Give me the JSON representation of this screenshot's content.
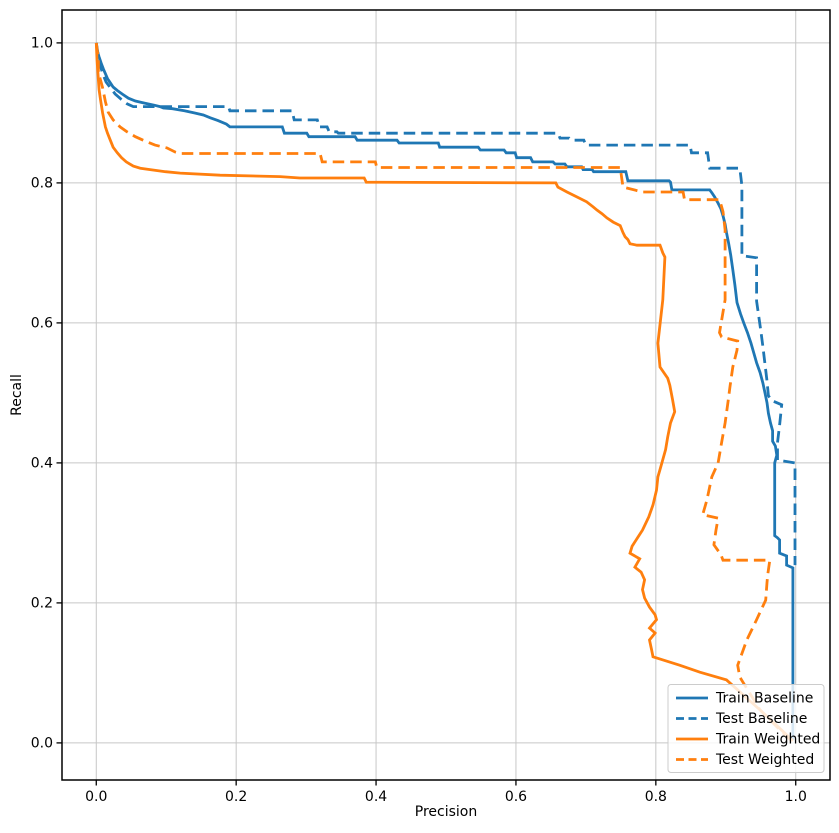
{
  "chart_data": {
    "type": "line",
    "title": "",
    "xlabel": "Precision",
    "ylabel": "Recall",
    "xlim": [
      -0.049,
      1.049
    ],
    "ylim": [
      -0.053,
      1.047
    ],
    "grid": true,
    "legend_position": "lower right",
    "x_ticks": [
      0.0,
      0.2,
      0.4,
      0.6,
      0.8,
      1.0
    ],
    "x_tick_labels": [
      "0.0",
      "0.2",
      "0.4",
      "0.6",
      "0.8",
      "1.0"
    ],
    "y_ticks": [
      0.0,
      0.2,
      0.4,
      0.6,
      0.8,
      1.0
    ],
    "y_tick_labels": [
      "0.0",
      "0.2",
      "0.4",
      "0.6",
      "0.8",
      "1.0"
    ],
    "series": [
      {
        "name": "Train Baseline",
        "color": "#1f77b4",
        "linestyle": "solid",
        "points": [
          [
            0.0,
            1.0
          ],
          [
            0.001,
            0.99
          ],
          [
            0.004,
            0.98
          ],
          [
            0.007,
            0.971
          ],
          [
            0.01,
            0.963
          ],
          [
            0.013,
            0.956
          ],
          [
            0.016,
            0.949
          ],
          [
            0.02,
            0.943
          ],
          [
            0.024,
            0.937
          ],
          [
            0.03,
            0.932
          ],
          [
            0.037,
            0.927
          ],
          [
            0.046,
            0.921
          ],
          [
            0.056,
            0.917
          ],
          [
            0.069,
            0.914
          ],
          [
            0.083,
            0.911
          ],
          [
            0.091,
            0.909
          ],
          [
            0.096,
            0.907
          ],
          [
            0.109,
            0.906
          ],
          [
            0.126,
            0.903
          ],
          [
            0.14,
            0.9
          ],
          [
            0.153,
            0.897
          ],
          [
            0.163,
            0.893
          ],
          [
            0.174,
            0.889
          ],
          [
            0.186,
            0.884
          ],
          [
            0.191,
            0.88
          ],
          [
            0.266,
            0.88
          ],
          [
            0.269,
            0.871
          ],
          [
            0.301,
            0.871
          ],
          [
            0.304,
            0.866
          ],
          [
            0.37,
            0.866
          ],
          [
            0.373,
            0.861
          ],
          [
            0.43,
            0.861
          ],
          [
            0.433,
            0.857
          ],
          [
            0.489,
            0.857
          ],
          [
            0.491,
            0.851
          ],
          [
            0.546,
            0.851
          ],
          [
            0.549,
            0.847
          ],
          [
            0.583,
            0.847
          ],
          [
            0.586,
            0.843
          ],
          [
            0.599,
            0.843
          ],
          [
            0.601,
            0.836
          ],
          [
            0.621,
            0.836
          ],
          [
            0.624,
            0.83
          ],
          [
            0.653,
            0.83
          ],
          [
            0.656,
            0.827
          ],
          [
            0.67,
            0.827
          ],
          [
            0.673,
            0.823
          ],
          [
            0.694,
            0.823
          ],
          [
            0.696,
            0.819
          ],
          [
            0.709,
            0.819
          ],
          [
            0.711,
            0.816
          ],
          [
            0.757,
            0.816
          ],
          [
            0.76,
            0.803
          ],
          [
            0.819,
            0.803
          ],
          [
            0.821,
            0.801
          ],
          [
            0.823,
            0.79
          ],
          [
            0.877,
            0.79
          ],
          [
            0.88,
            0.786
          ],
          [
            0.884,
            0.78
          ],
          [
            0.889,
            0.771
          ],
          [
            0.893,
            0.763
          ],
          [
            0.896,
            0.753
          ],
          [
            0.899,
            0.741
          ],
          [
            0.901,
            0.729
          ],
          [
            0.904,
            0.714
          ],
          [
            0.907,
            0.697
          ],
          [
            0.91,
            0.676
          ],
          [
            0.913,
            0.654
          ],
          [
            0.916,
            0.629
          ],
          [
            0.921,
            0.613
          ],
          [
            0.926,
            0.599
          ],
          [
            0.931,
            0.586
          ],
          [
            0.936,
            0.571
          ],
          [
            0.94,
            0.557
          ],
          [
            0.944,
            0.543
          ],
          [
            0.949,
            0.529
          ],
          [
            0.953,
            0.514
          ],
          [
            0.956,
            0.5
          ],
          [
            0.959,
            0.486
          ],
          [
            0.961,
            0.471
          ],
          [
            0.964,
            0.457
          ],
          [
            0.967,
            0.446
          ],
          [
            0.967,
            0.431
          ],
          [
            0.971,
            0.424
          ],
          [
            0.973,
            0.411
          ],
          [
            0.97,
            0.4
          ],
          [
            0.97,
            0.296
          ],
          [
            0.974,
            0.293
          ],
          [
            0.977,
            0.29
          ],
          [
            0.977,
            0.271
          ],
          [
            0.987,
            0.267
          ],
          [
            0.987,
            0.254
          ],
          [
            0.996,
            0.25
          ],
          [
            0.996,
            0.004
          ]
        ]
      },
      {
        "name": "Test Baseline",
        "color": "#1f77b4",
        "linestyle": "dashed",
        "points": [
          [
            0.0,
            1.0
          ],
          [
            0.003,
            0.981
          ],
          [
            0.006,
            0.966
          ],
          [
            0.01,
            0.954
          ],
          [
            0.014,
            0.944
          ],
          [
            0.02,
            0.936
          ],
          [
            0.027,
            0.927
          ],
          [
            0.036,
            0.919
          ],
          [
            0.044,
            0.913
          ],
          [
            0.053,
            0.909
          ],
          [
            0.189,
            0.909
          ],
          [
            0.191,
            0.903
          ],
          [
            0.28,
            0.903
          ],
          [
            0.283,
            0.89
          ],
          [
            0.316,
            0.89
          ],
          [
            0.319,
            0.88
          ],
          [
            0.33,
            0.88
          ],
          [
            0.333,
            0.873
          ],
          [
            0.344,
            0.873
          ],
          [
            0.346,
            0.871
          ],
          [
            0.66,
            0.871
          ],
          [
            0.663,
            0.864
          ],
          [
            0.676,
            0.864
          ],
          [
            0.679,
            0.861
          ],
          [
            0.697,
            0.861
          ],
          [
            0.7,
            0.854
          ],
          [
            0.849,
            0.854
          ],
          [
            0.851,
            0.843
          ],
          [
            0.874,
            0.843
          ],
          [
            0.877,
            0.821
          ],
          [
            0.92,
            0.821
          ],
          [
            0.923,
            0.796
          ],
          [
            0.923,
            0.696
          ],
          [
            0.944,
            0.693
          ],
          [
            0.944,
            0.631
          ],
          [
            0.947,
            0.61
          ],
          [
            0.95,
            0.589
          ],
          [
            0.953,
            0.566
          ],
          [
            0.956,
            0.541
          ],
          [
            0.959,
            0.517
          ],
          [
            0.961,
            0.496
          ],
          [
            0.966,
            0.489
          ],
          [
            0.98,
            0.483
          ],
          [
            0.977,
            0.454
          ],
          [
            0.974,
            0.429
          ],
          [
            0.974,
            0.404
          ],
          [
            0.999,
            0.4
          ],
          [
            0.999,
            0.254
          ]
        ]
      },
      {
        "name": "Train Weighted",
        "color": "#ff7f0e",
        "linestyle": "solid",
        "points": [
          [
            0.0,
            1.0
          ],
          [
            0.001,
            0.976
          ],
          [
            0.003,
            0.947
          ],
          [
            0.004,
            0.933
          ],
          [
            0.006,
            0.919
          ],
          [
            0.009,
            0.9
          ],
          [
            0.011,
            0.89
          ],
          [
            0.013,
            0.88
          ],
          [
            0.016,
            0.871
          ],
          [
            0.02,
            0.861
          ],
          [
            0.024,
            0.851
          ],
          [
            0.03,
            0.843
          ],
          [
            0.036,
            0.836
          ],
          [
            0.043,
            0.83
          ],
          [
            0.053,
            0.824
          ],
          [
            0.063,
            0.821
          ],
          [
            0.077,
            0.819
          ],
          [
            0.099,
            0.816
          ],
          [
            0.12,
            0.814
          ],
          [
            0.177,
            0.811
          ],
          [
            0.263,
            0.809
          ],
          [
            0.291,
            0.807
          ],
          [
            0.383,
            0.807
          ],
          [
            0.386,
            0.801
          ],
          [
            0.657,
            0.8
          ],
          [
            0.66,
            0.794
          ],
          [
            0.673,
            0.787
          ],
          [
            0.687,
            0.78
          ],
          [
            0.701,
            0.773
          ],
          [
            0.71,
            0.766
          ],
          [
            0.716,
            0.761
          ],
          [
            0.723,
            0.756
          ],
          [
            0.73,
            0.75
          ],
          [
            0.739,
            0.744
          ],
          [
            0.749,
            0.739
          ],
          [
            0.753,
            0.729
          ],
          [
            0.756,
            0.723
          ],
          [
            0.76,
            0.719
          ],
          [
            0.763,
            0.713
          ],
          [
            0.773,
            0.711
          ],
          [
            0.806,
            0.711
          ],
          [
            0.81,
            0.7
          ],
          [
            0.813,
            0.694
          ],
          [
            0.81,
            0.633
          ],
          [
            0.803,
            0.571
          ],
          [
            0.806,
            0.537
          ],
          [
            0.817,
            0.521
          ],
          [
            0.82,
            0.511
          ],
          [
            0.824,
            0.49
          ],
          [
            0.827,
            0.473
          ],
          [
            0.821,
            0.457
          ],
          [
            0.817,
            0.437
          ],
          [
            0.814,
            0.419
          ],
          [
            0.807,
            0.394
          ],
          [
            0.803,
            0.38
          ],
          [
            0.801,
            0.361
          ],
          [
            0.796,
            0.34
          ],
          [
            0.79,
            0.323
          ],
          [
            0.781,
            0.304
          ],
          [
            0.766,
            0.281
          ],
          [
            0.763,
            0.271
          ],
          [
            0.777,
            0.263
          ],
          [
            0.77,
            0.251
          ],
          [
            0.779,
            0.244
          ],
          [
            0.784,
            0.233
          ],
          [
            0.781,
            0.219
          ],
          [
            0.784,
            0.207
          ],
          [
            0.791,
            0.194
          ],
          [
            0.799,
            0.183
          ],
          [
            0.801,
            0.176
          ],
          [
            0.791,
            0.164
          ],
          [
            0.799,
            0.157
          ],
          [
            0.791,
            0.147
          ],
          [
            0.794,
            0.133
          ],
          [
            0.796,
            0.123
          ],
          [
            0.834,
            0.111
          ],
          [
            0.863,
            0.101
          ],
          [
            0.901,
            0.09
          ],
          [
            0.949,
            0.047
          ],
          [
            0.977,
            0.021
          ],
          [
            0.996,
            0.003
          ]
        ]
      },
      {
        "name": "Test Weighted",
        "color": "#ff7f0e",
        "linestyle": "dashed",
        "points": [
          [
            0.0,
            1.0
          ],
          [
            0.003,
            0.976
          ],
          [
            0.003,
            0.957
          ],
          [
            0.006,
            0.947
          ],
          [
            0.009,
            0.936
          ],
          [
            0.011,
            0.926
          ],
          [
            0.013,
            0.916
          ],
          [
            0.017,
            0.901
          ],
          [
            0.024,
            0.89
          ],
          [
            0.034,
            0.88
          ],
          [
            0.044,
            0.873
          ],
          [
            0.056,
            0.866
          ],
          [
            0.067,
            0.861
          ],
          [
            0.084,
            0.854
          ],
          [
            0.101,
            0.85
          ],
          [
            0.113,
            0.844
          ],
          [
            0.12,
            0.842
          ],
          [
            0.32,
            0.842
          ],
          [
            0.323,
            0.83
          ],
          [
            0.399,
            0.83
          ],
          [
            0.401,
            0.822
          ],
          [
            0.749,
            0.822
          ],
          [
            0.753,
            0.794
          ],
          [
            0.781,
            0.787
          ],
          [
            0.839,
            0.787
          ],
          [
            0.841,
            0.776
          ],
          [
            0.891,
            0.776
          ],
          [
            0.894,
            0.766
          ],
          [
            0.896,
            0.759
          ],
          [
            0.899,
            0.733
          ],
          [
            0.899,
            0.633
          ],
          [
            0.891,
            0.586
          ],
          [
            0.894,
            0.58
          ],
          [
            0.917,
            0.574
          ],
          [
            0.916,
            0.561
          ],
          [
            0.91,
            0.537
          ],
          [
            0.906,
            0.509
          ],
          [
            0.903,
            0.486
          ],
          [
            0.899,
            0.457
          ],
          [
            0.894,
            0.429
          ],
          [
            0.889,
            0.4
          ],
          [
            0.88,
            0.38
          ],
          [
            0.873,
            0.347
          ],
          [
            0.867,
            0.326
          ],
          [
            0.889,
            0.321
          ],
          [
            0.886,
            0.304
          ],
          [
            0.883,
            0.283
          ],
          [
            0.893,
            0.269
          ],
          [
            0.896,
            0.261
          ],
          [
            0.963,
            0.261
          ],
          [
            0.96,
            0.24
          ],
          [
            0.959,
            0.229
          ],
          [
            0.957,
            0.204
          ],
          [
            0.944,
            0.176
          ],
          [
            0.93,
            0.147
          ],
          [
            0.917,
            0.111
          ],
          [
            0.92,
            0.094
          ],
          [
            0.949,
            0.047
          ],
          [
            0.977,
            0.019
          ],
          [
            0.996,
            0.001
          ]
        ]
      }
    ]
  },
  "colors": {
    "series_blue": "#1f77b4",
    "series_orange": "#ff7f0e",
    "grid": "#c6c6c6",
    "spine": "#000000",
    "legend_border": "#cccccc"
  }
}
